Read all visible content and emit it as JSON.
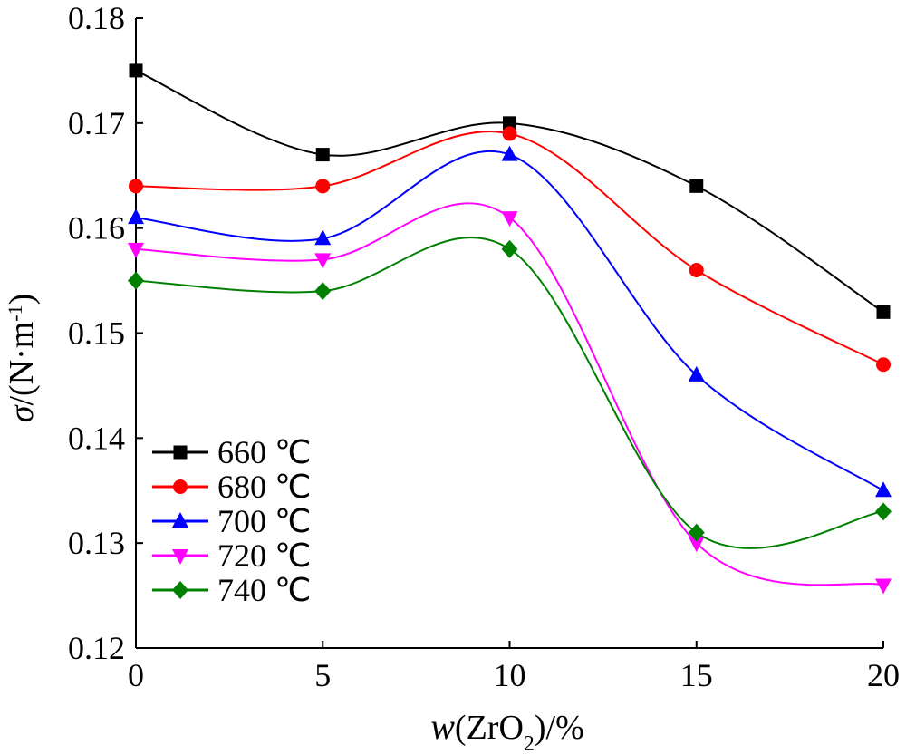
{
  "chart_data": {
    "type": "line",
    "x": [
      0,
      5,
      10,
      15,
      20
    ],
    "xlim": [
      0,
      20
    ],
    "ylim": [
      0.12,
      0.18
    ],
    "xticks": [
      "0",
      "5",
      "10",
      "15",
      "20"
    ],
    "yticks": [
      "0.12",
      "0.13",
      "0.14",
      "0.15",
      "0.16",
      "0.17",
      "0.18"
    ],
    "ylabel": {
      "symbol": "σ",
      "unit_open": "/(N·m",
      "unit_sup": "-1",
      "unit_close": ")"
    },
    "xlabel": {
      "symbol": "w",
      "open": "(ZrO",
      "sub": "2",
      "close": ")/%"
    },
    "legend_position": "bottom-left",
    "grid": false,
    "smooth": true,
    "series": [
      {
        "name": "660 ℃",
        "color": "#000000",
        "marker": "square",
        "values": [
          0.175,
          0.167,
          0.17,
          0.164,
          0.152
        ]
      },
      {
        "name": "680 ℃",
        "color": "#ff0000",
        "marker": "circle",
        "values": [
          0.164,
          0.164,
          0.169,
          0.156,
          0.147
        ]
      },
      {
        "name": "700 ℃",
        "color": "#0000ff",
        "marker": "triangle-up",
        "values": [
          0.161,
          0.159,
          0.167,
          0.146,
          0.135
        ]
      },
      {
        "name": "720 ℃",
        "color": "#ff00ff",
        "marker": "triangle-down",
        "values": [
          0.158,
          0.157,
          0.161,
          0.13,
          0.126
        ]
      },
      {
        "name": "740 ℃",
        "color": "#008000",
        "marker": "diamond",
        "values": [
          0.155,
          0.154,
          0.158,
          0.131,
          0.133
        ]
      }
    ]
  }
}
